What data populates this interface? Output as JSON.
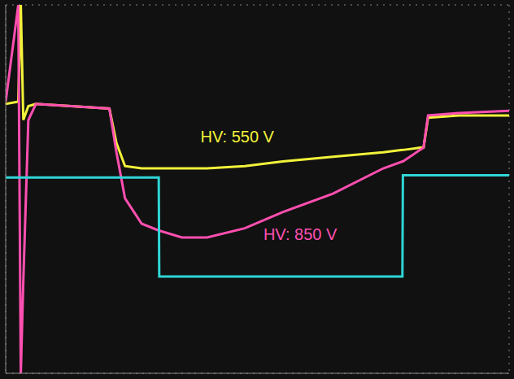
{
  "chart_data": {
    "type": "line",
    "x": [
      0,
      0.25,
      0.3,
      0.35,
      0.45,
      0.6,
      2.06,
      2.2,
      2.37,
      2.7,
      3.04,
      3.05,
      3.5,
      4.0,
      4.75,
      5.5,
      6.5,
      7.5,
      7.88,
      7.89,
      8.23,
      8.3,
      8.39,
      9,
      10
    ],
    "series": [
      {
        "color": "#f2f23a",
        "values": [
          1.85,
          1.9,
          4,
          1.5,
          1.8,
          1.85,
          1.75,
          1.0,
          0.5,
          0.45,
          0.45,
          0.45,
          0.45,
          0.45,
          0.5,
          0.6,
          0.7,
          0.8,
          0.85,
          0.85,
          0.9,
          0.9,
          1.55,
          1.6,
          1.6
        ]
      },
      {
        "color": "#ff4fb0",
        "values": [
          1.9,
          4,
          -4,
          -2,
          1.5,
          1.85,
          1.75,
          0.8,
          -0.2,
          -0.75,
          -0.9,
          -0.9,
          -1.05,
          -1.05,
          -0.85,
          -0.5,
          -0.1,
          0.45,
          0.6,
          0.6,
          0.85,
          0.9,
          1.6,
          1.65,
          1.7
        ]
      },
      {
        "color": "#2fd6d6",
        "values": [
          0.25,
          0.25,
          0.25,
          0.25,
          0.25,
          0.25,
          0.25,
          0.25,
          0.25,
          0.25,
          0.25,
          -1.9,
          -1.9,
          -1.9,
          -1.9,
          -1.9,
          -1.9,
          -1.9,
          -1.9,
          0.3,
          0.3,
          0.3,
          0.3,
          0.3,
          0.3
        ]
      }
    ],
    "annotations": [
      {
        "text": "HV: 550 V",
        "x": 4.6,
        "y": 1.14,
        "color": "#f2f23a"
      },
      {
        "text": "HV: 850 V",
        "x": 5.85,
        "y": -0.98,
        "color": "#ff4fb0"
      }
    ],
    "xlim": [
      0,
      10
    ],
    "xticks": [
      0,
      1,
      2,
      3,
      4,
      5,
      6,
      7,
      8,
      9,
      10
    ],
    "ylim": [
      -4,
      4
    ],
    "yticks": [
      -4,
      -3,
      -2,
      -1,
      0,
      1,
      2,
      3,
      4
    ],
    "grid": true,
    "tick_labels": false
  }
}
